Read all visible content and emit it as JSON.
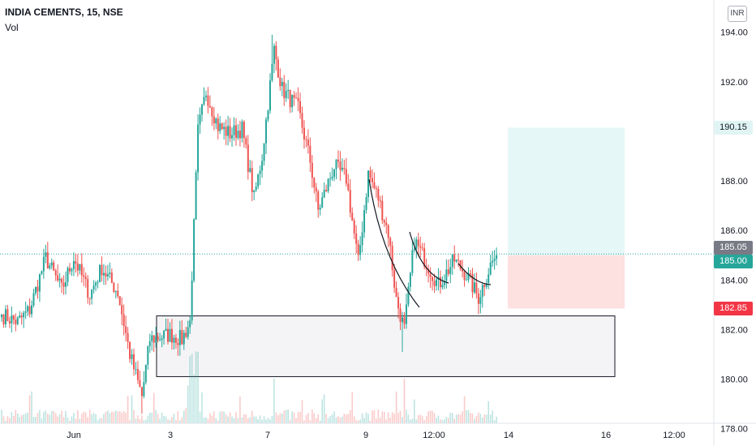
{
  "header": {
    "symbol": "INDIA CEMENTS, 15, NSE",
    "volume_label": "Vol",
    "currency": "INR"
  },
  "price_tags": {
    "target": "190.15",
    "last_close": "185.05",
    "entry": "185.00",
    "stop": "182.85"
  },
  "colors": {
    "up": "#26a69a",
    "down": "#ef5350",
    "target_zone": "#e6f7f7",
    "stop_zone": "#fde0e0",
    "demand_zone": "#f4f4f6",
    "last_price_line": "#26a69a",
    "target_tag_bg": "#e0f4f4",
    "stop_tag_bg": "#f23645",
    "last_tag_bg": "#787b86",
    "entry_tag_bg": "#26a69a"
  },
  "chart_data": {
    "type": "candlestick",
    "title": "INDIA CEMENTS, 15, NSE",
    "y_axis": {
      "ticks": [
        178.0,
        180.0,
        182.0,
        184.0,
        186.0,
        188.0,
        190.0,
        192.0,
        194.0
      ],
      "ylim": [
        177.3,
        195.3
      ]
    },
    "x_axis": {
      "ticks": [
        "Jun",
        "3",
        "7",
        "9",
        "12:00",
        "14",
        "16",
        "12:00"
      ]
    },
    "anchors": [
      {
        "bar": 0,
        "price": 182.6
      },
      {
        "bar": 8,
        "price": 182.3
      },
      {
        "bar": 14,
        "price": 182.8
      },
      {
        "bar": 22,
        "price": 184.9
      },
      {
        "bar": 30,
        "price": 183.6
      },
      {
        "bar": 36,
        "price": 184.9
      },
      {
        "bar": 44,
        "price": 183.4
      },
      {
        "bar": 50,
        "price": 184.5
      },
      {
        "bar": 58,
        "price": 183.5
      },
      {
        "bar": 64,
        "price": 181.0
      },
      {
        "bar": 70,
        "price": 179.3
      },
      {
        "bar": 74,
        "price": 181.6
      },
      {
        "bar": 84,
        "price": 181.8
      },
      {
        "bar": 90,
        "price": 181.6
      },
      {
        "bar": 94,
        "price": 182.3
      },
      {
        "bar": 98,
        "price": 190.0
      },
      {
        "bar": 102,
        "price": 191.6
      },
      {
        "bar": 108,
        "price": 190.2
      },
      {
        "bar": 114,
        "price": 189.9
      },
      {
        "bar": 120,
        "price": 190.1
      },
      {
        "bar": 126,
        "price": 187.3
      },
      {
        "bar": 130,
        "price": 189.0
      },
      {
        "bar": 136,
        "price": 193.3
      },
      {
        "bar": 140,
        "price": 191.7
      },
      {
        "bar": 148,
        "price": 190.9
      },
      {
        "bar": 154,
        "price": 188.8
      },
      {
        "bar": 158,
        "price": 186.8
      },
      {
        "bar": 166,
        "price": 188.6
      },
      {
        "bar": 172,
        "price": 188.1
      },
      {
        "bar": 178,
        "price": 184.7
      },
      {
        "bar": 183,
        "price": 188.3
      },
      {
        "bar": 188,
        "price": 187.3
      },
      {
        "bar": 193,
        "price": 185.9
      },
      {
        "bar": 197,
        "price": 183.2
      },
      {
        "bar": 201,
        "price": 182.0
      },
      {
        "bar": 206,
        "price": 185.6
      },
      {
        "bar": 212,
        "price": 184.7
      },
      {
        "bar": 218,
        "price": 183.8
      },
      {
        "bar": 226,
        "price": 184.8
      },
      {
        "bar": 232,
        "price": 184.2
      },
      {
        "bar": 238,
        "price": 183.3
      },
      {
        "bar": 244,
        "price": 184.6
      },
      {
        "bar": 247,
        "price": 185.0
      }
    ],
    "demand_zone": {
      "top": 182.55,
      "bottom": 180.1
    },
    "position": {
      "entry": 185.0,
      "target": 190.15,
      "stop": 182.85
    },
    "last_price": 185.05
  }
}
